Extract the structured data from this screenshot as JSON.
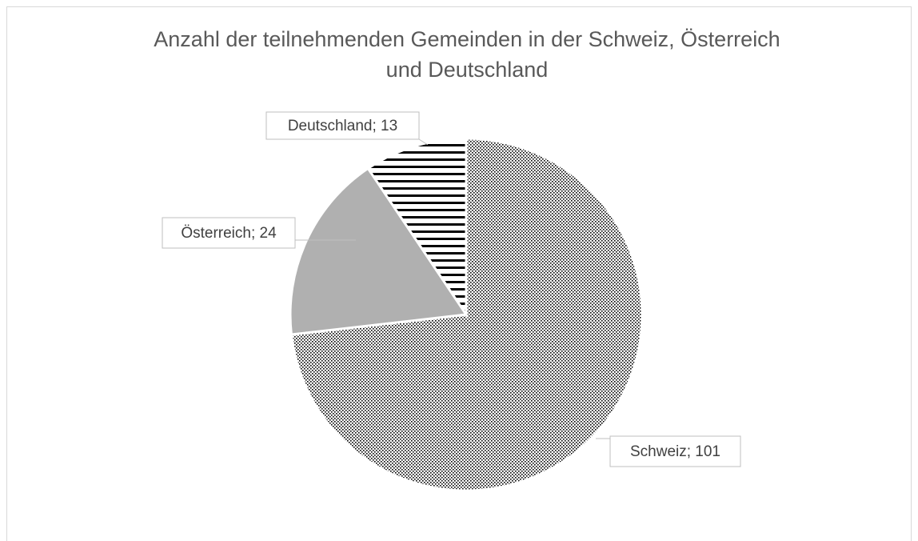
{
  "chart_data": {
    "type": "pie",
    "title": "Anzahl der teilnehmenden Gemeinden in der Schweiz, Österreich und Deutschland",
    "categories": [
      "Schweiz",
      "Österreich",
      "Deutschland"
    ],
    "values": [
      101,
      24,
      13
    ],
    "value_labels": [
      "Schweiz; 101",
      "Österreich; 24",
      "Deutschland; 13"
    ],
    "patterns": [
      "dotted",
      "solid",
      "horizontal-stripes"
    ],
    "colors": [
      "#000000",
      "#b0b0b0",
      "#000000"
    ]
  }
}
